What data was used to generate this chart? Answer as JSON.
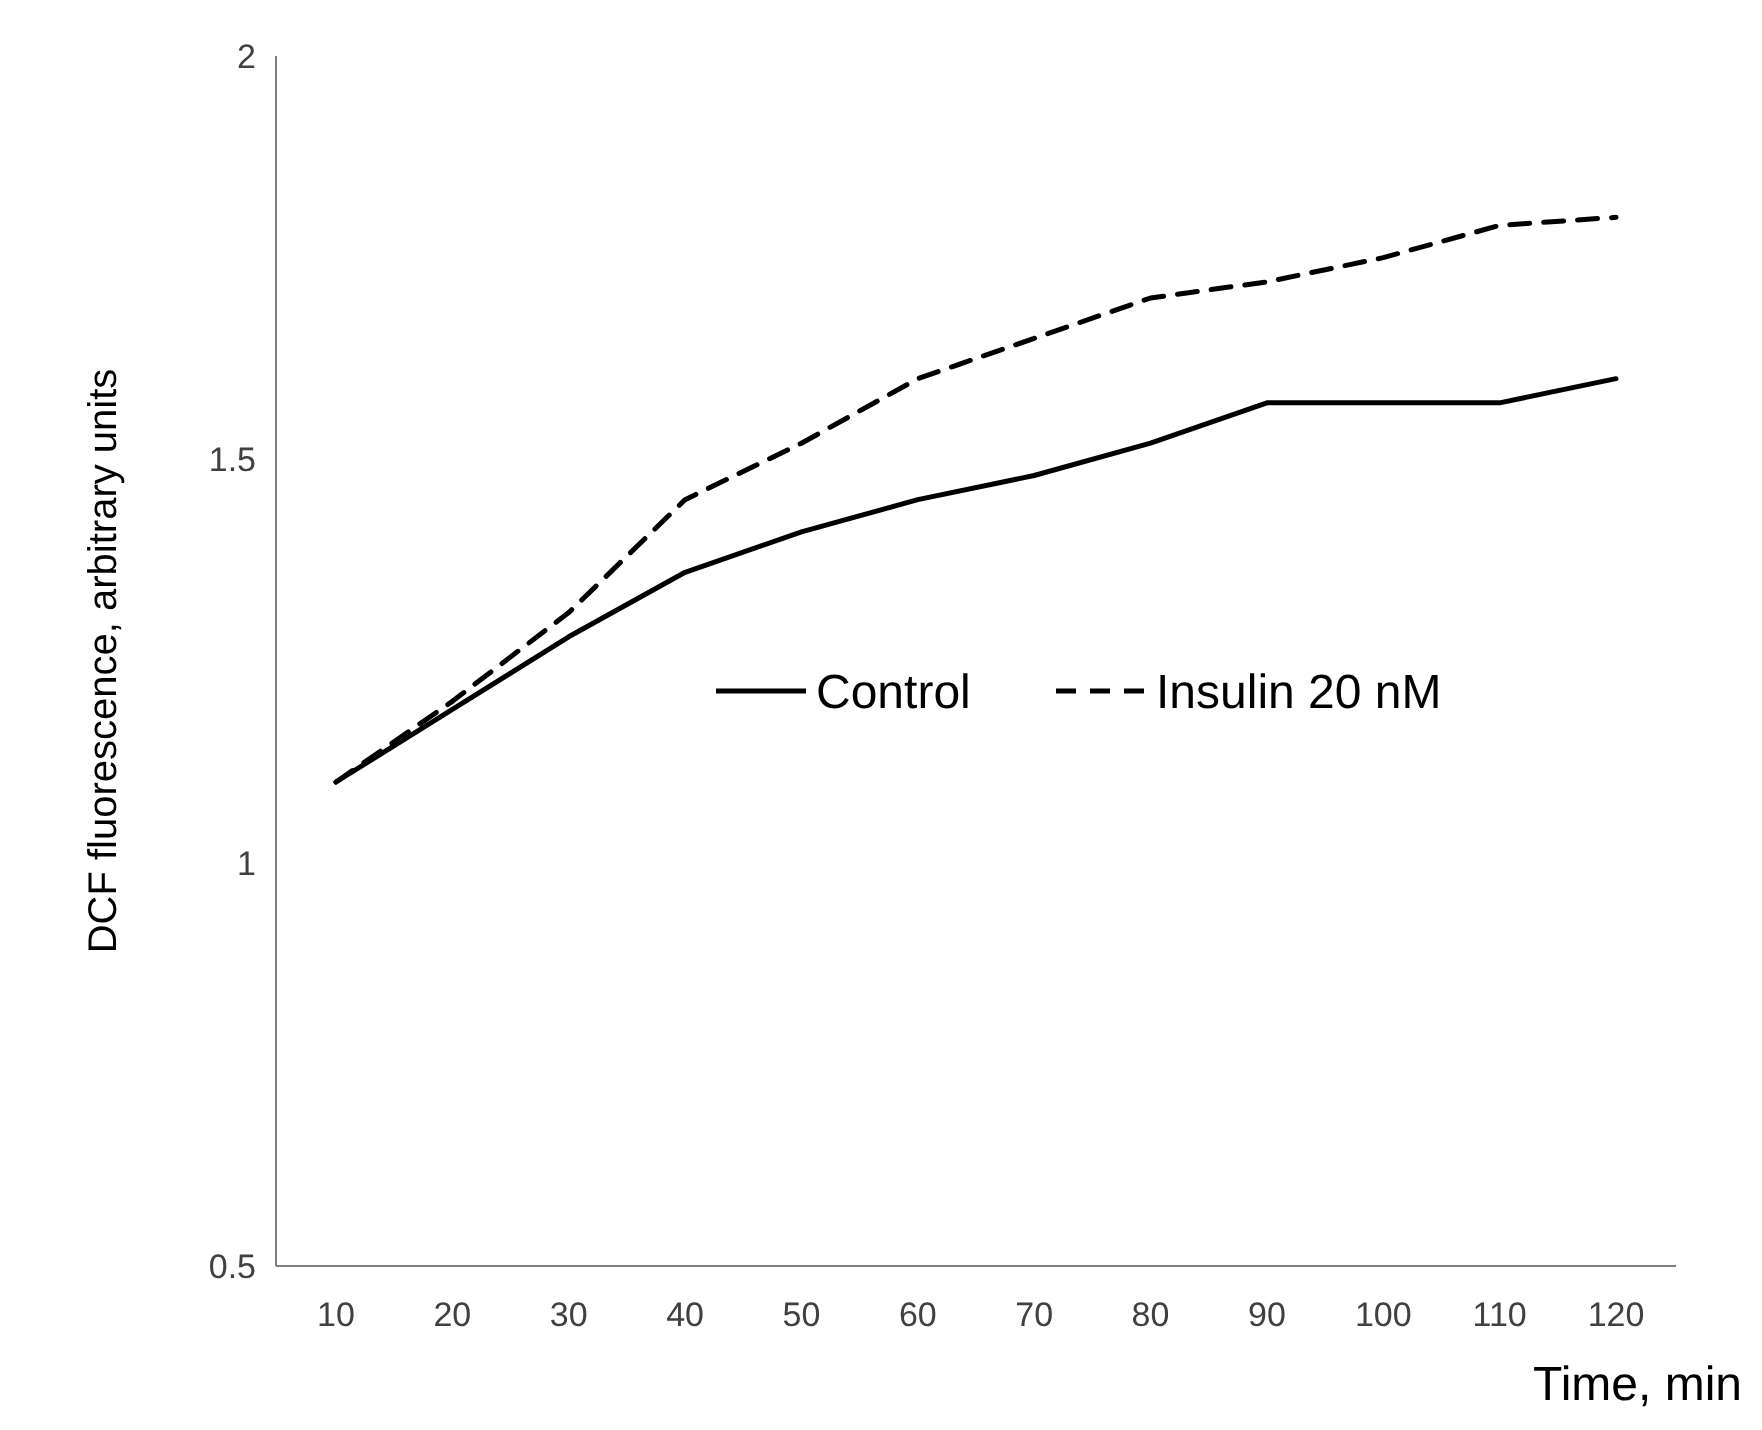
{
  "chart_data": {
    "type": "line",
    "xlabel": "Time, min",
    "ylabel": "DCF fluorescence, arbitrary units",
    "categories": [
      "10",
      "20",
      "30",
      "40",
      "50",
      "60",
      "70",
      "80",
      "90",
      "100",
      "110",
      "120"
    ],
    "series": [
      {
        "name": "Control",
        "color": "#000000",
        "line_style": "solid",
        "values": [
          1.1,
          1.19,
          1.28,
          1.36,
          1.41,
          1.45,
          1.48,
          1.52,
          1.57,
          1.57,
          1.57,
          1.6
        ]
      },
      {
        "name": "Insulin 20 nM",
        "color": "#000000",
        "line_style": "dashed",
        "values": [
          1.1,
          1.2,
          1.31,
          1.45,
          1.52,
          1.6,
          1.65,
          1.7,
          1.72,
          1.75,
          1.79,
          1.8
        ]
      }
    ],
    "ylim": [
      0.5,
      2
    ],
    "yticks": [
      0.5,
      1,
      1.5,
      2
    ],
    "grid": false,
    "legend": "center",
    "marker": "none"
  }
}
